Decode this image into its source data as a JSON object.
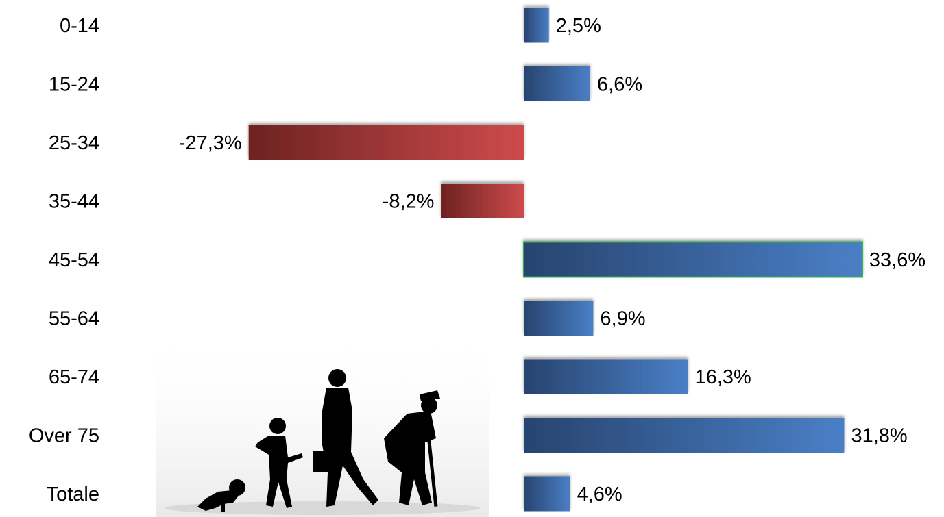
{
  "chart_data": {
    "type": "bar",
    "orientation": "horizontal",
    "categories": [
      "0-14",
      "15-24",
      "25-34",
      "35-44",
      "45-54",
      "55-64",
      "65-74",
      "Over 75",
      "Totale"
    ],
    "values": [
      2.5,
      6.6,
      -27.3,
      -8.2,
      33.6,
      6.9,
      16.3,
      31.8,
      4.6
    ],
    "value_labels": [
      "2,5%",
      "6,6%",
      "-27,3%",
      "-8,2%",
      "33,6%",
      "6,9%",
      "16,3%",
      "31,8%",
      "4,6%"
    ],
    "title": "",
    "xlabel": "",
    "ylabel": "",
    "grid": false,
    "legend": "none",
    "colors": {
      "positive_dark": "#27446f",
      "positive_light": "#4a7fc6",
      "negative_dark": "#6e2222",
      "negative_light": "#cd4b4b",
      "highlight_border": "#2db24a"
    },
    "highlighted_category": "45-54"
  },
  "decoration": {
    "illustration": "human-ages-silhouette"
  }
}
